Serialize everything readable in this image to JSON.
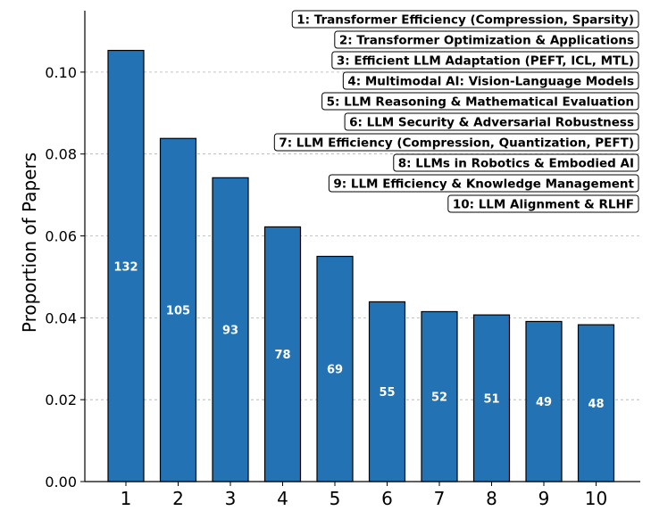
{
  "chart_data": {
    "type": "bar",
    "ylabel": "Proportion of Papers",
    "xlabel": "",
    "categories": [
      "1",
      "2",
      "3",
      "4",
      "5",
      "6",
      "7",
      "8",
      "9",
      "10"
    ],
    "values": [
      0.1053,
      0.0838,
      0.0742,
      0.0622,
      0.055,
      0.0439,
      0.0415,
      0.0407,
      0.0391,
      0.0383
    ],
    "counts": [
      "132",
      "105",
      "93",
      "78",
      "69",
      "55",
      "52",
      "51",
      "49",
      "48"
    ],
    "ylim": [
      0,
      0.115
    ],
    "yticks": [
      0.0,
      0.02,
      0.04,
      0.06,
      0.08,
      0.1
    ],
    "ytick_labels": [
      "0.00",
      "0.02",
      "0.04",
      "0.06",
      "0.08",
      "0.10"
    ],
    "grid": "horizontal dashed",
    "legend_placement": "top-right",
    "bar_color": "#2272b4",
    "legend_entries": [
      "1: Transformer Efficiency (Compression, Sparsity)",
      "2: Transformer Optimization & Applications",
      "3: Efficient LLM Adaptation (PEFT, ICL, MTL)",
      "4: Multimodal AI: Vision-Language Models",
      "5: LLM Reasoning & Mathematical Evaluation",
      "6: LLM Security & Adversarial Robustness",
      "7: LLM Efficiency (Compression, Quantization, PEFT)",
      "8: LLMs in Robotics & Embodied AI",
      "9: LLM Efficiency & Knowledge Management",
      "10: LLM Alignment & RLHF"
    ]
  }
}
